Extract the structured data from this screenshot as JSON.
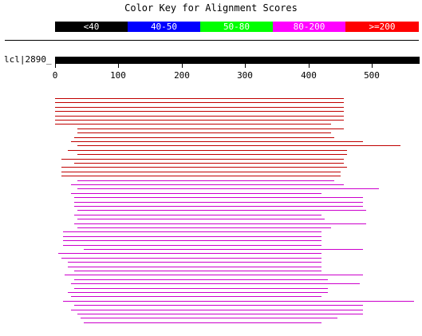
{
  "title": "Color Key for Alignment Scores",
  "color_key": [
    {
      "label": "<40",
      "color": "#000000"
    },
    {
      "label": "40-50",
      "color": "#0000ff"
    },
    {
      "label": "50-80",
      "color": "#00ff00"
    },
    {
      "label": "80-200",
      "color": "#ff00ff"
    },
    {
      "label": ">=200",
      "color": "#ff0000"
    }
  ],
  "query": {
    "label": "lcl|2890_",
    "length": 575
  },
  "axis": {
    "ticks": [
      0,
      100,
      200,
      300,
      400,
      500
    ],
    "max": 575
  },
  "hits": [
    {
      "start": 0,
      "end": 455,
      "color": "#c00000"
    },
    {
      "start": 0,
      "end": 455,
      "color": "#c00000"
    },
    {
      "start": 0,
      "end": 455,
      "color": "#c00000"
    },
    {
      "start": 0,
      "end": 455,
      "color": "#c00000"
    },
    {
      "start": 0,
      "end": 455,
      "color": "#c00000"
    },
    {
      "start": 0,
      "end": 455,
      "color": "#c00000"
    },
    {
      "start": 0,
      "end": 435,
      "color": "#c00000"
    },
    {
      "start": 35,
      "end": 455,
      "color": "#c00000"
    },
    {
      "start": 35,
      "end": 435,
      "color": "#c00000"
    },
    {
      "start": 30,
      "end": 440,
      "color": "#c00000"
    },
    {
      "start": 25,
      "end": 485,
      "color": "#c00000"
    },
    {
      "start": 35,
      "end": 545,
      "color": "#c00000"
    },
    {
      "start": 20,
      "end": 460,
      "color": "#c00000"
    },
    {
      "start": 35,
      "end": 460,
      "color": "#c00000"
    },
    {
      "start": 10,
      "end": 455,
      "color": "#c00000"
    },
    {
      "start": 30,
      "end": 455,
      "color": "#c00000"
    },
    {
      "start": 10,
      "end": 460,
      "color": "#c00000"
    },
    {
      "start": 10,
      "end": 450,
      "color": "#c00000"
    },
    {
      "start": 10,
      "end": 450,
      "color": "#c00000"
    },
    {
      "start": 35,
      "end": 440,
      "color": "#cc00cc"
    },
    {
      "start": 25,
      "end": 455,
      "color": "#cc00cc"
    },
    {
      "start": 35,
      "end": 510,
      "color": "#cc00cc"
    },
    {
      "start": 25,
      "end": 420,
      "color": "#cc00cc"
    },
    {
      "start": 30,
      "end": 485,
      "color": "#cc00cc"
    },
    {
      "start": 30,
      "end": 485,
      "color": "#cc00cc"
    },
    {
      "start": 30,
      "end": 485,
      "color": "#cc00cc"
    },
    {
      "start": 35,
      "end": 490,
      "color": "#cc00cc"
    },
    {
      "start": 30,
      "end": 420,
      "color": "#cc00cc"
    },
    {
      "start": 35,
      "end": 425,
      "color": "#cc00cc"
    },
    {
      "start": 30,
      "end": 490,
      "color": "#cc00cc"
    },
    {
      "start": 35,
      "end": 435,
      "color": "#cc00cc"
    },
    {
      "start": 12,
      "end": 420,
      "color": "#cc00cc"
    },
    {
      "start": 12,
      "end": 420,
      "color": "#cc00cc"
    },
    {
      "start": 12,
      "end": 420,
      "color": "#cc00cc"
    },
    {
      "start": 12,
      "end": 420,
      "color": "#cc00cc"
    },
    {
      "start": 45,
      "end": 485,
      "color": "#cc00cc"
    },
    {
      "start": 5,
      "end": 420,
      "color": "#cc00cc"
    },
    {
      "start": 10,
      "end": 420,
      "color": "#cc00cc"
    },
    {
      "start": 20,
      "end": 420,
      "color": "#cc00cc"
    },
    {
      "start": 20,
      "end": 420,
      "color": "#cc00cc"
    },
    {
      "start": 30,
      "end": 420,
      "color": "#cc00cc"
    },
    {
      "start": 15,
      "end": 485,
      "color": "#cc00cc"
    },
    {
      "start": 30,
      "end": 430,
      "color": "#cc00cc"
    },
    {
      "start": 25,
      "end": 480,
      "color": "#cc00cc"
    },
    {
      "start": 30,
      "end": 430,
      "color": "#cc00cc"
    },
    {
      "start": 20,
      "end": 430,
      "color": "#cc00cc"
    },
    {
      "start": 25,
      "end": 420,
      "color": "#cc00cc"
    },
    {
      "start": 12,
      "end": 565,
      "color": "#cc00cc"
    },
    {
      "start": 30,
      "end": 485,
      "color": "#cc00cc"
    },
    {
      "start": 25,
      "end": 485,
      "color": "#cc00cc"
    },
    {
      "start": 35,
      "end": 485,
      "color": "#cc00cc"
    },
    {
      "start": 40,
      "end": 445,
      "color": "#cc00cc"
    },
    {
      "start": 45,
      "end": 420,
      "color": "#cc00cc"
    }
  ]
}
